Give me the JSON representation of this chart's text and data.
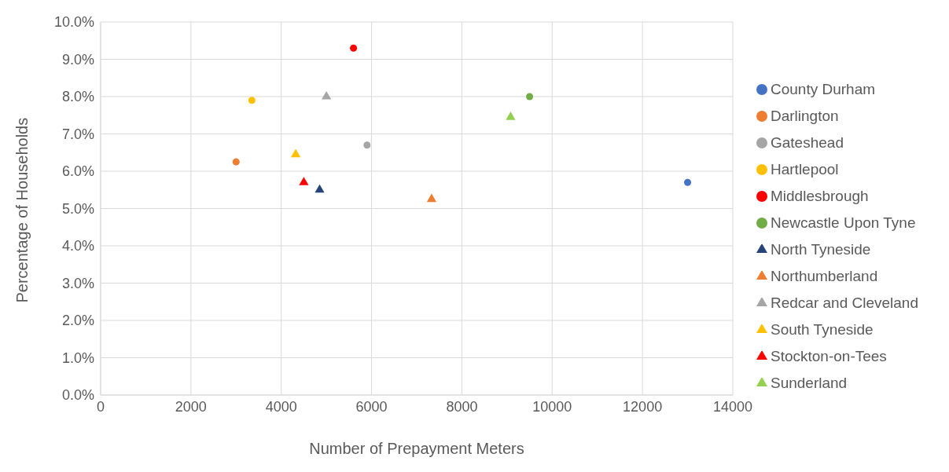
{
  "chart_data": {
    "type": "scatter",
    "xlabel": "Number of Prepayment Meters",
    "ylabel": "Percentage of Households",
    "xlim": [
      0,
      14000
    ],
    "xticks": [
      0,
      2000,
      4000,
      6000,
      8000,
      10000,
      12000,
      14000
    ],
    "ylim": [
      0,
      10
    ],
    "yticks": [
      {
        "value": 0,
        "label": "0.0%"
      },
      {
        "value": 1,
        "label": "1.0%"
      },
      {
        "value": 2,
        "label": "2.0%"
      },
      {
        "value": 3,
        "label": "3.0%"
      },
      {
        "value": 4,
        "label": "4.0%"
      },
      {
        "value": 5,
        "label": "5.0%"
      },
      {
        "value": 6,
        "label": "6.0%"
      },
      {
        "value": 7,
        "label": "7.0%"
      },
      {
        "value": 8,
        "label": "8.0%"
      },
      {
        "value": 9,
        "label": "9.0%"
      },
      {
        "value": 10,
        "label": "10.0%"
      }
    ],
    "grid": true,
    "legend": "right",
    "series": [
      {
        "name": "County Durham",
        "color": "#4472c4",
        "marker": "circle",
        "x": [
          13000
        ],
        "values": [
          5.7
        ]
      },
      {
        "name": "Darlington",
        "color": "#ed7d31",
        "marker": "circle",
        "x": [
          3000
        ],
        "values": [
          6.25
        ]
      },
      {
        "name": "Gateshead",
        "color": "#a5a5a5",
        "marker": "circle",
        "x": [
          5900
        ],
        "values": [
          6.7
        ]
      },
      {
        "name": "Hartlepool",
        "color": "#ffc000",
        "marker": "circle",
        "x": [
          3350
        ],
        "values": [
          7.9
        ]
      },
      {
        "name": "Middlesbrough",
        "color": "#ff0000",
        "marker": "circle",
        "x": [
          5600
        ],
        "values": [
          9.3
        ]
      },
      {
        "name": "Newcastle Upon Tyne",
        "color": "#70ad47",
        "marker": "circle",
        "x": [
          9500
        ],
        "values": [
          8.0
        ]
      },
      {
        "name": "North Tyneside",
        "color": "#264478",
        "marker": "triangle",
        "x": [
          4850
        ],
        "values": [
          5.5
        ]
      },
      {
        "name": "Northumberland",
        "color": "#ed7d31",
        "marker": "triangle",
        "x": [
          7330
        ],
        "values": [
          5.25
        ]
      },
      {
        "name": "Redcar and Cleveland",
        "color": "#a5a5a5",
        "marker": "triangle",
        "x": [
          5000
        ],
        "values": [
          8.0
        ]
      },
      {
        "name": "South Tyneside",
        "color": "#ffc000",
        "marker": "triangle",
        "x": [
          4320
        ],
        "values": [
          6.45
        ]
      },
      {
        "name": "Stockton-on-Tees",
        "color": "#ff0000",
        "marker": "triangle",
        "x": [
          4500
        ],
        "values": [
          5.7
        ]
      },
      {
        "name": "Sunderland",
        "color": "#92d050",
        "marker": "triangle",
        "x": [
          9080
        ],
        "values": [
          7.45
        ]
      }
    ]
  }
}
